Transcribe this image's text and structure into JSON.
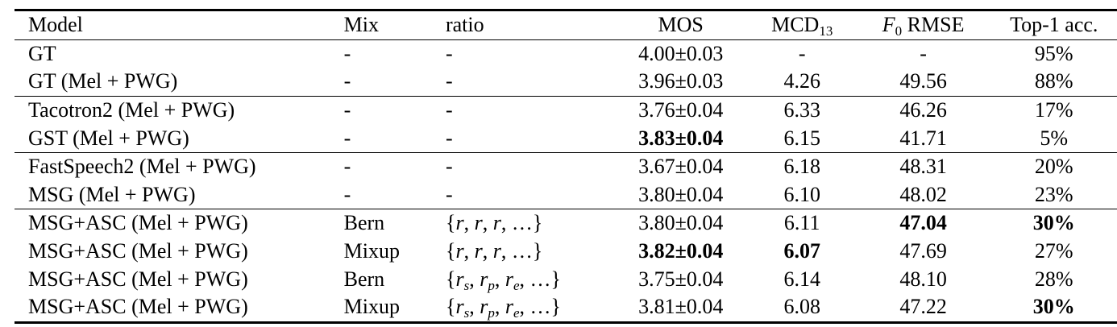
{
  "table": {
    "header": [
      "Model",
      "Mix",
      "ratio",
      "MOS",
      {
        "text": "MCD",
        "sub": "13"
      },
      {
        "text": "F",
        "sub": "0",
        "rest": " RMSE"
      },
      "Top-1 acc."
    ],
    "groups": [
      [
        [
          "GT",
          "-",
          "-",
          "4.00±0.03",
          "-",
          "-",
          "95%"
        ],
        [
          "GT (Mel + PWG)",
          "-",
          "-",
          "3.96±0.03",
          "4.26",
          "49.56",
          "88%"
        ]
      ],
      [
        [
          "Tacotron2 (Mel + PWG)",
          "-",
          "-",
          "3.76±0.04",
          "6.33",
          "46.26",
          "17%"
        ],
        [
          "GST (Mel + PWG)",
          "-",
          "-",
          {
            "text": "3.83±0.04",
            "bold": true
          },
          "6.15",
          "41.71",
          "5%"
        ]
      ],
      [
        [
          "FastSpeech2 (Mel + PWG)",
          "-",
          "-",
          "3.67±0.04",
          "6.18",
          "48.31",
          "20%"
        ],
        [
          "MSG (Mel + PWG)",
          "-",
          "-",
          "3.80±0.04",
          "6.10",
          "48.02",
          "23%"
        ]
      ],
      [
        [
          "MSG+ASC (Mel + PWG)",
          "Bern",
          [
            {
              "text": "{"
            },
            {
              "text": "r"
            },
            {
              "text": ", "
            },
            {
              "text": "r"
            },
            {
              "text": ", "
            },
            {
              "text": "r"
            },
            {
              "text": ", …"
            },
            {
              "text": "}"
            }
          ],
          "3.80±0.04",
          "6.11",
          {
            "text": "47.04",
            "bold": true
          },
          {
            "text": "30%",
            "bold": true
          }
        ],
        [
          "MSG+ASC (Mel + PWG)",
          "Mixup",
          [
            {
              "text": "{"
            },
            {
              "text": "r"
            },
            {
              "text": ", "
            },
            {
              "text": "r"
            },
            {
              "text": ", "
            },
            {
              "text": "r"
            },
            {
              "text": ", …"
            },
            {
              "text": "}"
            }
          ],
          {
            "text": "3.82±0.04",
            "bold": true
          },
          {
            "text": "6.07",
            "bold": true
          },
          "47.69",
          "27%"
        ],
        [
          "MSG+ASC (Mel + PWG)",
          "Bern",
          [
            {
              "text": "{"
            },
            {
              "text": "r",
              "sub": "s"
            },
            {
              "text": ", "
            },
            {
              "text": "r",
              "sub": "p"
            },
            {
              "text": ", "
            },
            {
              "text": "r",
              "sub": "e"
            },
            {
              "text": ", …"
            },
            {
              "text": "}"
            }
          ],
          "3.75±0.04",
          "6.14",
          "48.10",
          "28%"
        ],
        [
          "MSG+ASC (Mel + PWG)",
          "Mixup",
          [
            {
              "text": "{"
            },
            {
              "text": "r",
              "sub": "s"
            },
            {
              "text": ", "
            },
            {
              "text": "r",
              "sub": "p"
            },
            {
              "text": ", "
            },
            {
              "text": "r",
              "sub": "e"
            },
            {
              "text": ", …"
            },
            {
              "text": "}"
            }
          ],
          "3.81±0.04",
          "6.08",
          "47.22",
          {
            "text": "30%",
            "bold": true
          }
        ]
      ]
    ]
  }
}
